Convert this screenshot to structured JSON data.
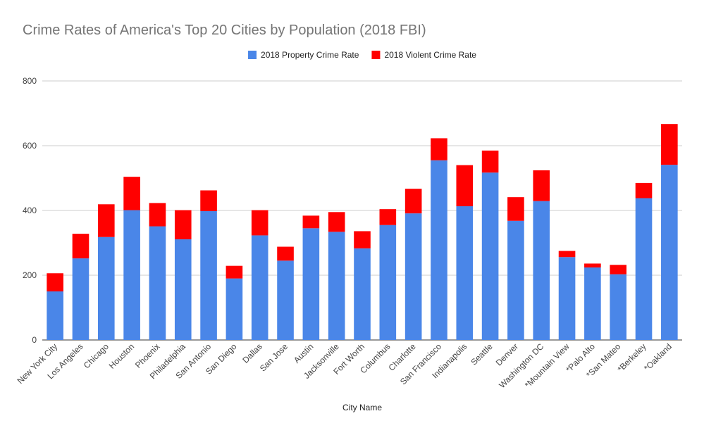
{
  "title": "Crime Rates of America's Top 20 Cities by Population (2018 FBI)",
  "chart_data": {
    "type": "bar",
    "stacked": true,
    "title": "Crime Rates of America's Top 20 Cities by Population (2018 FBI)",
    "xlabel": "City Name",
    "ylabel": "",
    "ylim": [
      0,
      800
    ],
    "yticks": [
      0,
      200,
      400,
      600,
      800
    ],
    "grid": true,
    "legend_position": "top",
    "categories": [
      "New York City",
      "Los Angeles",
      "Chicago",
      "Houston",
      "Phoenix",
      "Philadelphia",
      "San Antonio",
      "San Diego",
      "Dallas",
      "San Jose",
      "Austin",
      "Jacksonville",
      "Fort Worth",
      "Columbus",
      "Charlotte",
      "San Francisco",
      "Indianapolis",
      "Seattle",
      "Denver",
      "Washington DC",
      "*Mountain View",
      "*Palo Alto",
      "*San Mateo",
      "*Berkeley",
      "*Oakland"
    ],
    "series": [
      {
        "name": "2018 Property Crime Rate",
        "color": "#4a86e8",
        "values": [
          150,
          252,
          318,
          401,
          351,
          311,
          398,
          190,
          323,
          245,
          345,
          334,
          283,
          355,
          391,
          555,
          413,
          517,
          368,
          429,
          256,
          224,
          203,
          438,
          541
        ]
      },
      {
        "name": "2018 Violent Crime Rate",
        "color": "#ff0000",
        "values": [
          56,
          76,
          101,
          103,
          72,
          90,
          64,
          39,
          78,
          43,
          39,
          61,
          53,
          49,
          76,
          68,
          127,
          68,
          73,
          95,
          19,
          12,
          29,
          47,
          126
        ]
      }
    ]
  }
}
